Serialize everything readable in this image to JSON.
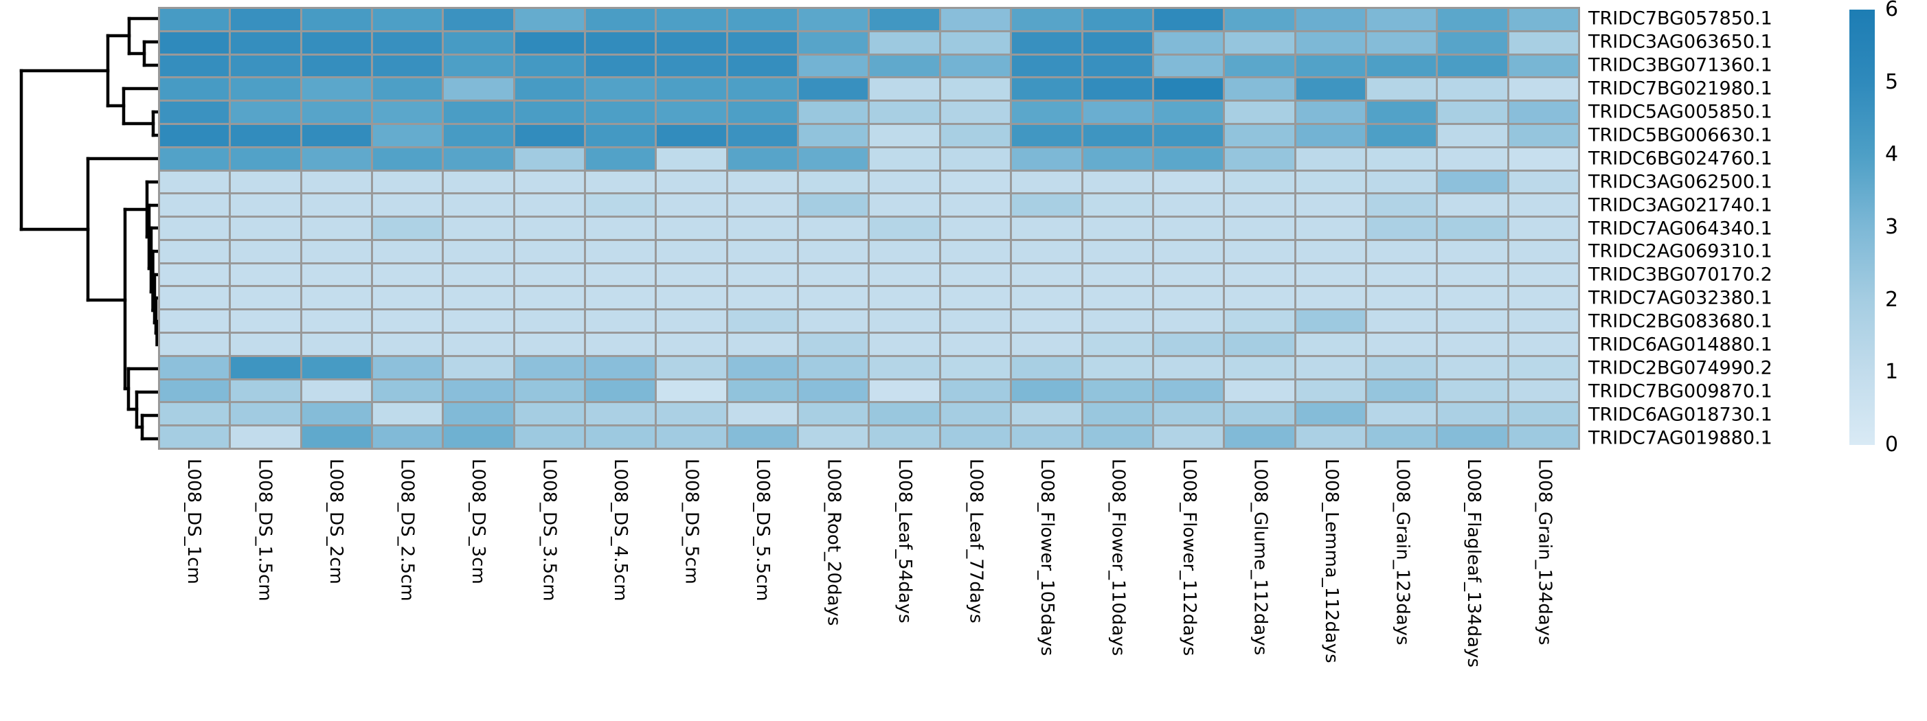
{
  "figure": {
    "background_color": "#ffffff",
    "title": ""
  },
  "chart_data": {
    "type": "heatmap",
    "title": "",
    "xlabel": "",
    "ylabel": "",
    "value_range": [
      0,
      6
    ],
    "grid_line_color": "#999999",
    "rows": [
      "TRIDC7BG057850.1",
      "TRIDC3AG063650.1",
      "TRIDC3BG071360.1",
      "TRIDC7BG021980.1",
      "TRIDC5AG005850.1",
      "TRIDC5BG006630.1",
      "TRIDC6BG024760.1",
      "TRIDC3AG062500.1",
      "TRIDC3AG021740.1",
      "TRIDC7AG064340.1",
      "TRIDC2AG069310.1",
      "TRIDC3BG070170.2",
      "TRIDC7AG032380.1",
      "TRIDC2BG083680.1",
      "TRIDC6AG014880.1",
      "TRIDC2BG074990.2",
      "TRIDC7BG009870.1",
      "TRIDC6AG018730.1",
      "TRIDC7AG019880.1"
    ],
    "columns": [
      "L008_DS_1cm",
      "L008_DS_1.5cm",
      "L008_DS_2cm",
      "L008_DS_2.5cm",
      "L008_DS_3cm",
      "L008_DS_3.5cm",
      "L008_DS_4.5cm",
      "L008_DS_5cm",
      "L008_DS_5.5cm",
      "L008_Root_20days",
      "L008_Leaf_54days",
      "L008_Leaf_77days",
      "L008_Flower_105days",
      "L008_Flower_110days",
      "L008_Flower_112days",
      "L008_Glume_112days",
      "L008_Lemma_112days",
      "L008_Grain_123days",
      "L008_Flagleaf_134days",
      "L008_Grain_134days"
    ],
    "values": [
      [
        4.2,
        4.7,
        4.2,
        4.0,
        4.6,
        3.5,
        4.1,
        4.0,
        4.0,
        3.7,
        4.4,
        2.7,
        3.8,
        4.3,
        5.0,
        3.7,
        3.4,
        3.0,
        3.7,
        3.1
      ],
      [
        5.0,
        4.8,
        4.8,
        4.7,
        4.2,
        5.0,
        4.9,
        4.8,
        4.7,
        3.8,
        2.2,
        2.2,
        4.7,
        4.8,
        2.9,
        2.4,
        3.0,
        2.8,
        3.8,
        1.9
      ],
      [
        4.8,
        4.6,
        4.8,
        4.7,
        4.0,
        4.3,
        4.8,
        4.7,
        4.8,
        3.2,
        3.6,
        3.2,
        4.7,
        4.7,
        2.9,
        3.7,
        3.9,
        4.0,
        4.1,
        3.1
      ],
      [
        4.2,
        4.0,
        3.7,
        4.0,
        2.9,
        4.2,
        3.9,
        4.0,
        4.0,
        4.7,
        1.2,
        1.3,
        4.5,
        4.9,
        5.5,
        2.8,
        4.5,
        1.5,
        1.4,
        1.0
      ],
      [
        4.6,
        3.8,
        3.8,
        3.7,
        4.1,
        4.1,
        4.0,
        3.9,
        4.0,
        2.3,
        1.9,
        1.6,
        3.7,
        3.4,
        3.7,
        1.9,
        2.9,
        3.9,
        1.9,
        2.7
      ],
      [
        5.0,
        4.9,
        4.9,
        3.5,
        4.2,
        4.9,
        4.3,
        4.9,
        4.6,
        2.5,
        1.1,
        1.9,
        4.4,
        4.5,
        4.4,
        2.5,
        3.2,
        4.0,
        1.2,
        2.4
      ],
      [
        3.9,
        3.9,
        3.6,
        3.9,
        3.8,
        2.1,
        3.9,
        1.1,
        3.8,
        3.5,
        1.1,
        1.2,
        3.0,
        3.5,
        3.7,
        2.4,
        1.2,
        1.1,
        1.0,
        0.8
      ],
      [
        1.0,
        1.0,
        1.0,
        1.0,
        1.0,
        1.0,
        1.0,
        1.0,
        1.0,
        1.1,
        1.0,
        0.9,
        1.0,
        1.0,
        0.9,
        1.1,
        1.1,
        1.2,
        2.6,
        1.2
      ],
      [
        1.0,
        1.0,
        1.0,
        1.0,
        1.0,
        1.0,
        1.3,
        1.0,
        1.0,
        2.0,
        1.0,
        1.0,
        1.9,
        1.1,
        1.0,
        1.0,
        1.0,
        1.6,
        1.0,
        1.0
      ],
      [
        1.0,
        1.0,
        1.0,
        1.7,
        1.0,
        1.0,
        1.0,
        1.0,
        1.0,
        1.0,
        1.5,
        1.0,
        1.0,
        1.0,
        1.0,
        1.0,
        1.0,
        1.8,
        1.9,
        1.0
      ],
      [
        1.0,
        1.0,
        1.0,
        1.0,
        1.0,
        1.0,
        1.0,
        1.0,
        1.0,
        1.0,
        1.0,
        1.0,
        1.0,
        1.0,
        1.0,
        1.0,
        1.0,
        1.0,
        1.0,
        1.0
      ],
      [
        0.9,
        0.9,
        0.9,
        0.9,
        0.9,
        0.9,
        0.9,
        0.9,
        0.9,
        0.9,
        0.9,
        0.9,
        0.9,
        0.9,
        0.9,
        0.9,
        0.9,
        0.9,
        0.9,
        0.9
      ],
      [
        0.9,
        0.9,
        0.9,
        0.9,
        0.9,
        0.9,
        0.9,
        0.9,
        0.9,
        0.9,
        0.9,
        0.9,
        0.9,
        0.9,
        0.9,
        0.9,
        0.9,
        0.9,
        0.9,
        0.9
      ],
      [
        0.9,
        0.9,
        0.9,
        0.9,
        0.9,
        1.0,
        1.0,
        1.0,
        1.4,
        1.0,
        1.0,
        1.0,
        0.9,
        1.0,
        1.0,
        1.3,
        2.2,
        1.0,
        1.0,
        1.0
      ],
      [
        1.0,
        1.0,
        1.0,
        1.0,
        1.0,
        1.0,
        1.0,
        1.0,
        1.0,
        1.6,
        1.0,
        1.0,
        1.0,
        1.3,
        1.8,
        2.0,
        1.1,
        1.0,
        1.0,
        1.0
      ],
      [
        2.6,
        4.5,
        4.2,
        2.6,
        1.4,
        2.6,
        2.7,
        1.6,
        2.6,
        2.1,
        1.5,
        1.3,
        1.9,
        1.3,
        1.2,
        1.3,
        1.2,
        1.6,
        1.2,
        1.3
      ],
      [
        2.9,
        2.0,
        1.0,
        2.4,
        2.7,
        2.4,
        3.0,
        0.6,
        2.5,
        2.7,
        0.7,
        2.1,
        3.0,
        2.5,
        2.6,
        0.9,
        1.5,
        2.4,
        1.5,
        1.2
      ],
      [
        1.9,
        2.1,
        2.8,
        1.1,
        2.9,
        2.0,
        1.8,
        1.8,
        1.0,
        1.9,
        2.3,
        2.0,
        1.5,
        2.3,
        2.0,
        2.0,
        2.8,
        1.4,
        1.8,
        1.9
      ],
      [
        2.0,
        1.0,
        3.6,
        2.9,
        3.3,
        2.2,
        2.2,
        2.1,
        2.8,
        1.5,
        1.9,
        2.1,
        2.1,
        2.4,
        1.6,
        2.9,
        1.8,
        2.4,
        2.8,
        2.2
      ]
    ],
    "colorbar": {
      "position": "right",
      "tick_labels": [
        "6",
        "5",
        "4",
        "3",
        "2",
        "1",
        "0"
      ],
      "tick_values": [
        6,
        5,
        4,
        3,
        2,
        1,
        0
      ],
      "gradient_anchors": [
        {
          "value": 0,
          "color": "#d9eaf5"
        },
        {
          "value": 1,
          "color": "#c2dcec"
        },
        {
          "value": 2,
          "color": "#a5cde2"
        },
        {
          "value": 3,
          "color": "#7db8d6"
        },
        {
          "value": 4,
          "color": "#4d9fc6"
        },
        {
          "value": 5,
          "color": "#2f8abc"
        },
        {
          "value": 6,
          "color": "#1d7db4"
        }
      ]
    },
    "row_dendrogram": {
      "position": "left",
      "line_color": "#000000",
      "segments": [
        [
          188,
          27,
          228,
          27
        ],
        [
          210,
          61,
          228,
          61
        ],
        [
          210,
          95,
          228,
          95
        ],
        [
          210,
          61,
          210,
          95
        ],
        [
          188,
          27,
          188,
          78
        ],
        [
          188,
          78,
          210,
          78
        ],
        [
          157,
          52,
          188,
          52
        ],
        [
          157,
          52,
          157,
          154
        ],
        [
          157,
          154,
          180,
          154
        ],
        [
          180,
          129,
          180,
          180
        ],
        [
          180,
          129,
          228,
          129
        ],
        [
          180,
          180,
          223,
          180
        ],
        [
          223,
          163,
          223,
          197
        ],
        [
          223,
          163,
          228,
          163
        ],
        [
          223,
          197,
          228,
          197
        ],
        [
          31,
          103,
          157,
          103
        ],
        [
          31,
          103,
          31,
          334
        ],
        [
          31,
          334,
          128,
          334
        ],
        [
          128,
          231,
          128,
          437
        ],
        [
          128,
          231,
          228,
          231
        ],
        [
          128,
          437,
          182,
          437
        ],
        [
          182,
          305,
          182,
          566
        ],
        [
          182,
          305,
          214,
          305
        ],
        [
          214,
          265,
          214,
          345
        ],
        [
          214,
          265,
          228,
          265
        ],
        [
          214,
          345,
          217,
          345
        ],
        [
          217,
          299,
          217,
          391
        ],
        [
          217,
          299,
          228,
          299
        ],
        [
          217,
          391,
          220,
          391
        ],
        [
          220,
          332,
          220,
          425
        ],
        [
          220,
          332,
          228,
          332
        ],
        [
          220,
          425,
          222.5,
          425
        ],
        [
          222.5,
          366,
          222.5,
          452
        ],
        [
          222.5,
          366,
          228,
          366
        ],
        [
          222.5,
          452,
          225,
          452
        ],
        [
          225,
          400,
          225,
          470
        ],
        [
          225,
          400,
          228,
          400
        ],
        [
          225,
          470,
          227,
          470
        ],
        [
          227,
          434,
          227,
          485
        ],
        [
          227,
          434,
          228,
          434
        ],
        [
          227,
          485,
          228.5,
          485
        ],
        [
          228.5,
          468,
          228.5,
          502
        ],
        [
          182,
          566,
          187,
          566
        ],
        [
          187,
          537,
          187,
          596
        ],
        [
          187,
          537,
          228,
          537
        ],
        [
          187,
          596,
          199,
          596
        ],
        [
          199,
          571,
          199,
          622
        ],
        [
          199,
          571,
          228,
          571
        ],
        [
          199,
          622,
          207,
          622
        ],
        [
          207,
          605,
          207,
          639
        ],
        [
          207,
          605,
          228,
          605
        ],
        [
          207,
          639,
          228,
          639
        ]
      ]
    }
  }
}
